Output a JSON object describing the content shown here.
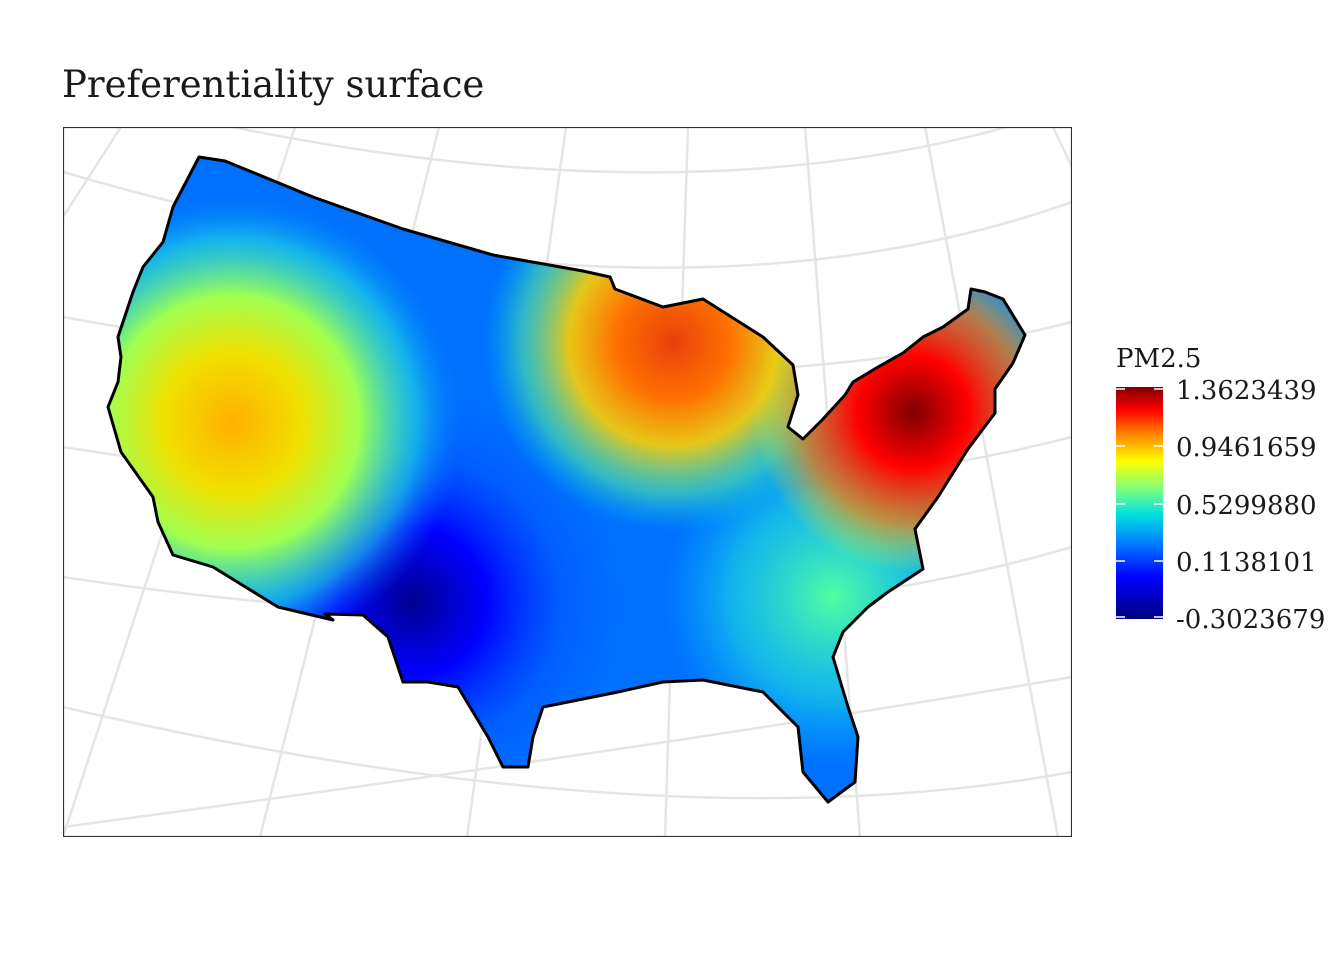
{
  "title": "Preferentiality surface",
  "legend": {
    "title": "PM2.5",
    "labels": [
      "1.3623439",
      "0.9461659",
      "0.5299880",
      "0.1138101",
      "-0.3023679"
    ],
    "colors": [
      "#7f0000",
      "#ff0000",
      "#ff8000",
      "#ffff00",
      "#7fff7f",
      "#00e0e0",
      "#0080ff",
      "#0000ff",
      "#00007f"
    ]
  },
  "map": {
    "region": "Contiguous United States",
    "variable": "PM2.5",
    "hotspots": [
      {
        "name": "Northeast",
        "level": "high",
        "color": "#7f0000"
      },
      {
        "name": "Great Lakes",
        "level": "high",
        "color": "#e8400c"
      },
      {
        "name": "California",
        "level": "elevated",
        "color": "#ffb000"
      },
      {
        "name": "Southwest",
        "level": "low",
        "color": "#000090"
      }
    ]
  }
}
